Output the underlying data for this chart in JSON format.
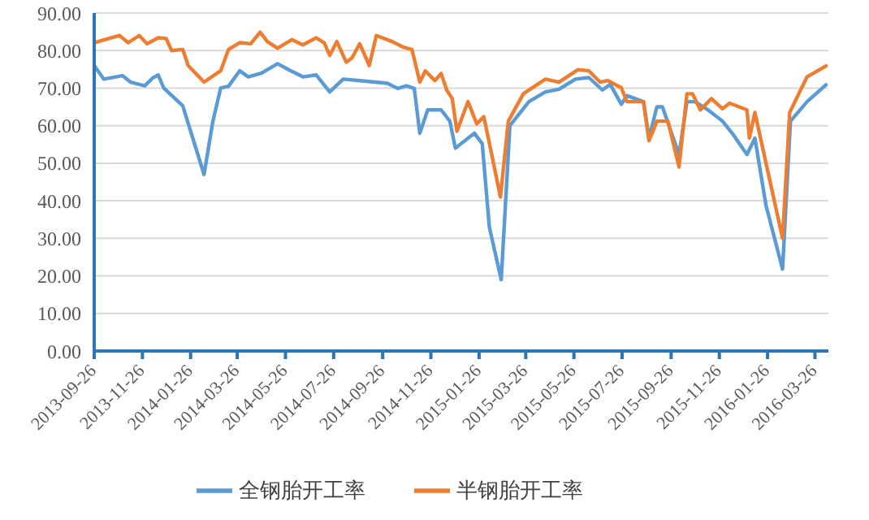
{
  "chart_data": {
    "type": "line",
    "xlim": [
      "2013-09-26",
      "2016-04-12"
    ],
    "xticks": [
      "2013-09-26",
      "2013-11-26",
      "2014-01-26",
      "2014-03-26",
      "2014-05-26",
      "2014-07-26",
      "2014-09-26",
      "2014-11-26",
      "2015-01-26",
      "2015-03-26",
      "2015-05-26",
      "2015-07-26",
      "2015-09-26",
      "2015-11-26",
      "2016-01-26",
      "2016-03-26"
    ],
    "ylim": [
      0,
      90
    ],
    "yticks": [
      {
        "value": 0,
        "label": "0.00"
      },
      {
        "value": 10,
        "label": "10.00"
      },
      {
        "value": 20,
        "label": "20.00"
      },
      {
        "value": 30,
        "label": "30.00"
      },
      {
        "value": 40,
        "label": "40.00"
      },
      {
        "value": 50,
        "label": "50.00"
      },
      {
        "value": 60,
        "label": "60.00"
      },
      {
        "value": 70,
        "label": "70.00"
      },
      {
        "value": 80,
        "label": "80.00"
      },
      {
        "value": 90,
        "label": "90.00"
      }
    ],
    "grid": "y",
    "legend": "bottom",
    "marker": "none",
    "line_style": "solid",
    "series": [
      {
        "name": "全钢胎开工率",
        "color": "#5b9bd5",
        "x": [
          "2013-09-26",
          "2013-10-08",
          "2013-11-01",
          "2013-11-11",
          "2013-11-29",
          "2013-12-09",
          "2013-12-16",
          "2013-12-23",
          "2014-01-16",
          "2014-02-12",
          "2014-02-23",
          "2014-03-05",
          "2014-03-15",
          "2014-03-29",
          "2014-04-09",
          "2014-04-26",
          "2014-05-16",
          "2014-05-30",
          "2014-06-17",
          "2014-07-04",
          "2014-07-21",
          "2014-08-07",
          "2014-08-28",
          "2014-10-02",
          "2014-10-15",
          "2014-10-26",
          "2014-11-05",
          "2014-11-12",
          "2014-11-22",
          "2014-12-09",
          "2014-12-20",
          "2014-12-27",
          "2015-01-20",
          "2015-01-30",
          "2015-02-08",
          "2015-02-23",
          "2015-03-06",
          "2015-03-30",
          "2015-04-20",
          "2015-05-07",
          "2015-05-28",
          "2015-06-14",
          "2015-07-01",
          "2015-07-11",
          "2015-07-25",
          "2015-08-01",
          "2015-08-22",
          "2015-08-29",
          "2015-09-08",
          "2015-09-15",
          "2015-10-06",
          "2015-10-16",
          "2015-10-26",
          "2015-11-13",
          "2015-11-30",
          "2015-12-14",
          "2015-12-31",
          "2016-01-10",
          "2016-01-24",
          "2016-02-14",
          "2016-02-24",
          "2016-03-16",
          "2016-04-09"
        ],
        "values": [
          76,
          72.4,
          73.3,
          71.6,
          70.6,
          72.7,
          73.5,
          70,
          65.3,
          47,
          61,
          70,
          70.5,
          74.6,
          73,
          74,
          76.5,
          74.9,
          73,
          73.5,
          69,
          72.4,
          72,
          71.3,
          69.9,
          70.6,
          69.9,
          58,
          64.2,
          64.2,
          61.2,
          54,
          58,
          55.2,
          33,
          19,
          60,
          66.4,
          69,
          69.7,
          72.4,
          72.8,
          69.5,
          71,
          65.7,
          68,
          66.4,
          56.7,
          65,
          65,
          52.3,
          66.4,
          66.4,
          64,
          61.2,
          57.5,
          52.3,
          56.7,
          38.8,
          21.8,
          61.2,
          66.4,
          70.9
        ]
      },
      {
        "name": "半钢胎开工率",
        "color": "#ed7d31",
        "x": [
          "2013-09-26",
          "2013-10-28",
          "2013-11-08",
          "2013-11-22",
          "2013-12-02",
          "2013-12-16",
          "2013-12-26",
          "2014-01-02",
          "2014-01-16",
          "2014-01-23",
          "2014-02-12",
          "2014-03-05",
          "2014-03-15",
          "2014-03-29",
          "2014-04-12",
          "2014-04-24",
          "2014-05-03",
          "2014-05-16",
          "2014-06-03",
          "2014-06-17",
          "2014-07-04",
          "2014-07-14",
          "2014-07-21",
          "2014-07-30",
          "2014-08-11",
          "2014-08-18",
          "2014-08-28",
          "2014-09-09",
          "2014-09-18",
          "2014-10-08",
          "2014-10-22",
          "2014-11-02",
          "2014-11-12",
          "2014-11-19",
          "2014-12-01",
          "2014-12-09",
          "2014-12-16",
          "2014-12-23",
          "2014-12-29",
          "2015-01-12",
          "2015-01-23",
          "2015-02-01",
          "2015-02-11",
          "2015-02-22",
          "2015-03-04",
          "2015-03-23",
          "2015-04-20",
          "2015-05-07",
          "2015-05-31",
          "2015-06-14",
          "2015-06-28",
          "2015-07-08",
          "2015-07-25",
          "2015-08-01",
          "2015-08-22",
          "2015-08-29",
          "2015-09-08",
          "2015-09-22",
          "2015-10-06",
          "2015-10-16",
          "2015-10-23",
          "2015-11-02",
          "2015-11-16",
          "2015-11-30",
          "2015-12-09",
          "2015-12-31",
          "2016-01-03",
          "2016-01-10",
          "2016-02-14",
          "2016-02-23",
          "2016-03-16",
          "2016-04-09"
        ],
        "values": [
          82.1,
          84,
          82.1,
          84,
          81.8,
          83.4,
          83.2,
          80,
          80.3,
          76,
          71.6,
          74.6,
          80.3,
          82.1,
          81.8,
          84.9,
          82.4,
          80.6,
          82.9,
          81.5,
          83.4,
          82.1,
          78.7,
          82.4,
          76.9,
          78,
          81.8,
          76,
          84,
          82.4,
          80.9,
          80.3,
          71.6,
          74.6,
          72,
          73.9,
          69.5,
          67.2,
          58.5,
          66.4,
          60.5,
          62.4,
          52.3,
          41,
          61.2,
          68.5,
          72.4,
          71.6,
          74.9,
          74.6,
          71.6,
          72,
          70.1,
          66.4,
          66.4,
          56,
          61.2,
          61.2,
          49,
          68.5,
          68.5,
          64.2,
          67.2,
          64.5,
          66,
          64.2,
          56.7,
          63.5,
          30,
          63.5,
          73,
          75.9
        ]
      }
    ]
  }
}
